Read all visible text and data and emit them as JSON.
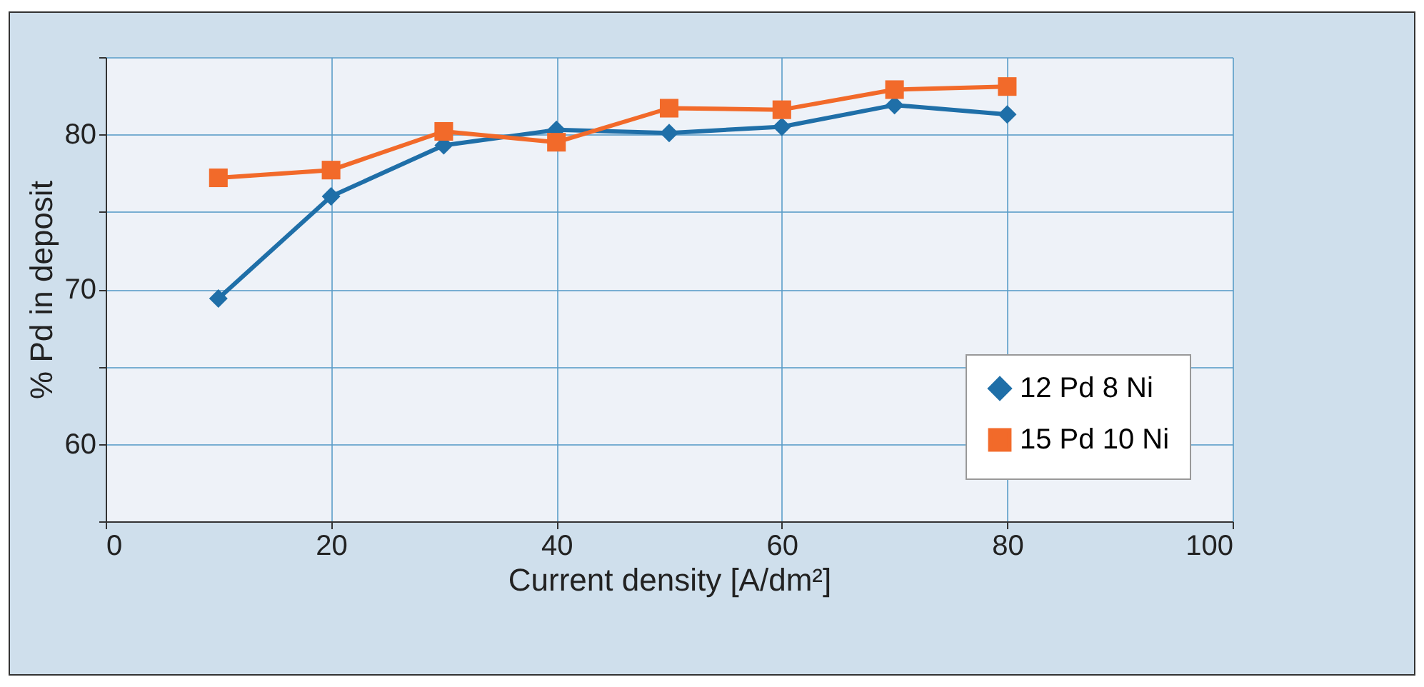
{
  "chart_data": {
    "type": "line",
    "xlabel": "Current density [A/dm²]",
    "ylabel": "% Pd in deposit",
    "x": [
      10,
      20,
      30,
      40,
      50,
      60,
      70,
      80
    ],
    "series": [
      {
        "name": "12 Pd 8 Ni",
        "color": "#1f6fa8",
        "marker": "diamond",
        "values": [
          69.4,
          76.0,
          79.3,
          80.3,
          80.1,
          80.5,
          81.9,
          81.3
        ]
      },
      {
        "name": "15 Pd 10 Ni",
        "color": "#f26a2a",
        "marker": "square",
        "values": [
          77.2,
          77.7,
          80.2,
          79.5,
          81.7,
          81.6,
          82.9,
          83.1
        ]
      }
    ],
    "xlim": [
      0,
      100
    ],
    "xticks": [
      0,
      20,
      40,
      60,
      80,
      100
    ],
    "ylim": [
      55,
      85
    ],
    "yticks": [
      {
        "value": 55,
        "label": null
      },
      60,
      {
        "value": 65,
        "label": null
      },
      70,
      {
        "value": 75,
        "label": null
      },
      80,
      {
        "value": 85,
        "label": null
      }
    ],
    "grid": true,
    "legend": "bottom right",
    "line_style": "solid"
  }
}
